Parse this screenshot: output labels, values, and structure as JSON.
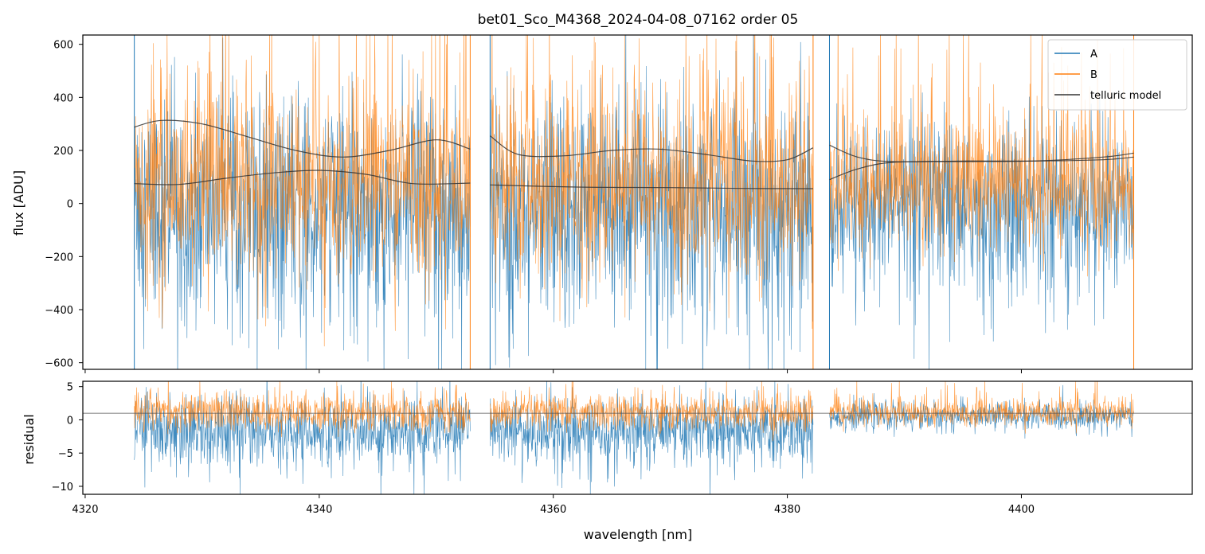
{
  "chart_data": [
    {
      "type": "line",
      "panel": "flux",
      "title": "bet01_Sco_M4368_2024-04-08_07162  order 05",
      "xlabel": "",
      "ylabel": "flux [ADU]",
      "xlim": [
        4319.8,
        4414.6
      ],
      "ylim": [
        -625,
        635
      ],
      "yticks": [
        -600,
        -400,
        -200,
        0,
        200,
        400,
        600
      ],
      "yticklabels": [
        "−600",
        "−400",
        "−200",
        "0",
        "200",
        "400",
        "600"
      ],
      "xticks": [
        4320,
        4340,
        4360,
        4380,
        4400
      ],
      "segments": [
        [
          4324.2,
          4352.9
        ],
        [
          4354.6,
          4382.2
        ],
        [
          4383.6,
          4409.6
        ]
      ],
      "legend": {
        "placement": "top-right",
        "entries": [
          "A",
          "B",
          "telluric model"
        ]
      },
      "series": [
        {
          "name": "A",
          "color": "#1f77b4",
          "description": "noisy spectrum",
          "center": 0,
          "spread": 380
        },
        {
          "name": "B",
          "color": "#ff7f0e",
          "description": "noisy spectrum",
          "center": 60,
          "spread": 320
        },
        {
          "name": "telluric model",
          "color": "#333333",
          "curves": [
            {
              "x": [
                4324.2,
                4326.5,
                4330,
                4334,
                4338,
                4342,
                4346,
                4350,
                4352.9
              ],
              "y": [
                288,
                313,
                300,
                250,
                200,
                175,
                200,
                240,
                205
              ]
            },
            {
              "x": [
                4324.2,
                4328,
                4332,
                4336,
                4340,
                4344,
                4348,
                4352.9
              ],
              "y": [
                75,
                72,
                95,
                115,
                125,
                110,
                75,
                77
              ]
            },
            {
              "x": [
                4354.6,
                4357,
                4361,
                4365,
                4369,
                4373,
                4377,
                4380,
                4382.2
              ],
              "y": [
                255,
                185,
                180,
                200,
                205,
                185,
                160,
                165,
                210
              ]
            },
            {
              "x": [
                4354.6,
                4362,
                4370,
                4376,
                4382.2
              ],
              "y": [
                70,
                62,
                60,
                57,
                56
              ]
            },
            {
              "x": [
                4383.6,
                4386,
                4389,
                4395,
                4401,
                4407,
                4409.6
              ],
              "y": [
                220,
                175,
                158,
                160,
                160,
                165,
                175
              ]
            },
            {
              "x": [
                4383.6,
                4386,
                4389,
                4395,
                4401,
                4407,
                4409.6
              ],
              "y": [
                90,
                130,
                155,
                158,
                160,
                175,
                190
              ]
            }
          ]
        }
      ]
    },
    {
      "type": "line",
      "panel": "residual",
      "title": "",
      "xlabel": "wavelength [nm]",
      "ylabel": "residual",
      "xlim": [
        4319.8,
        4414.6
      ],
      "ylim": [
        -11.2,
        5.8
      ],
      "yticks": [
        -10,
        -5,
        0,
        5
      ],
      "yticklabels": [
        "−10",
        "−5",
        "0",
        "5"
      ],
      "xticks": [
        4320,
        4340,
        4360,
        4380,
        4400
      ],
      "xticklabels": [
        "4320",
        "4340",
        "4360",
        "4380",
        "4400"
      ],
      "reference_line": 1,
      "series": [
        {
          "name": "A",
          "color": "#1f77b4"
        },
        {
          "name": "B",
          "color": "#ff7f0e"
        }
      ]
    }
  ],
  "colors": {
    "A": "#1f77b4",
    "B": "#ff7f0e",
    "model": "#333333"
  }
}
